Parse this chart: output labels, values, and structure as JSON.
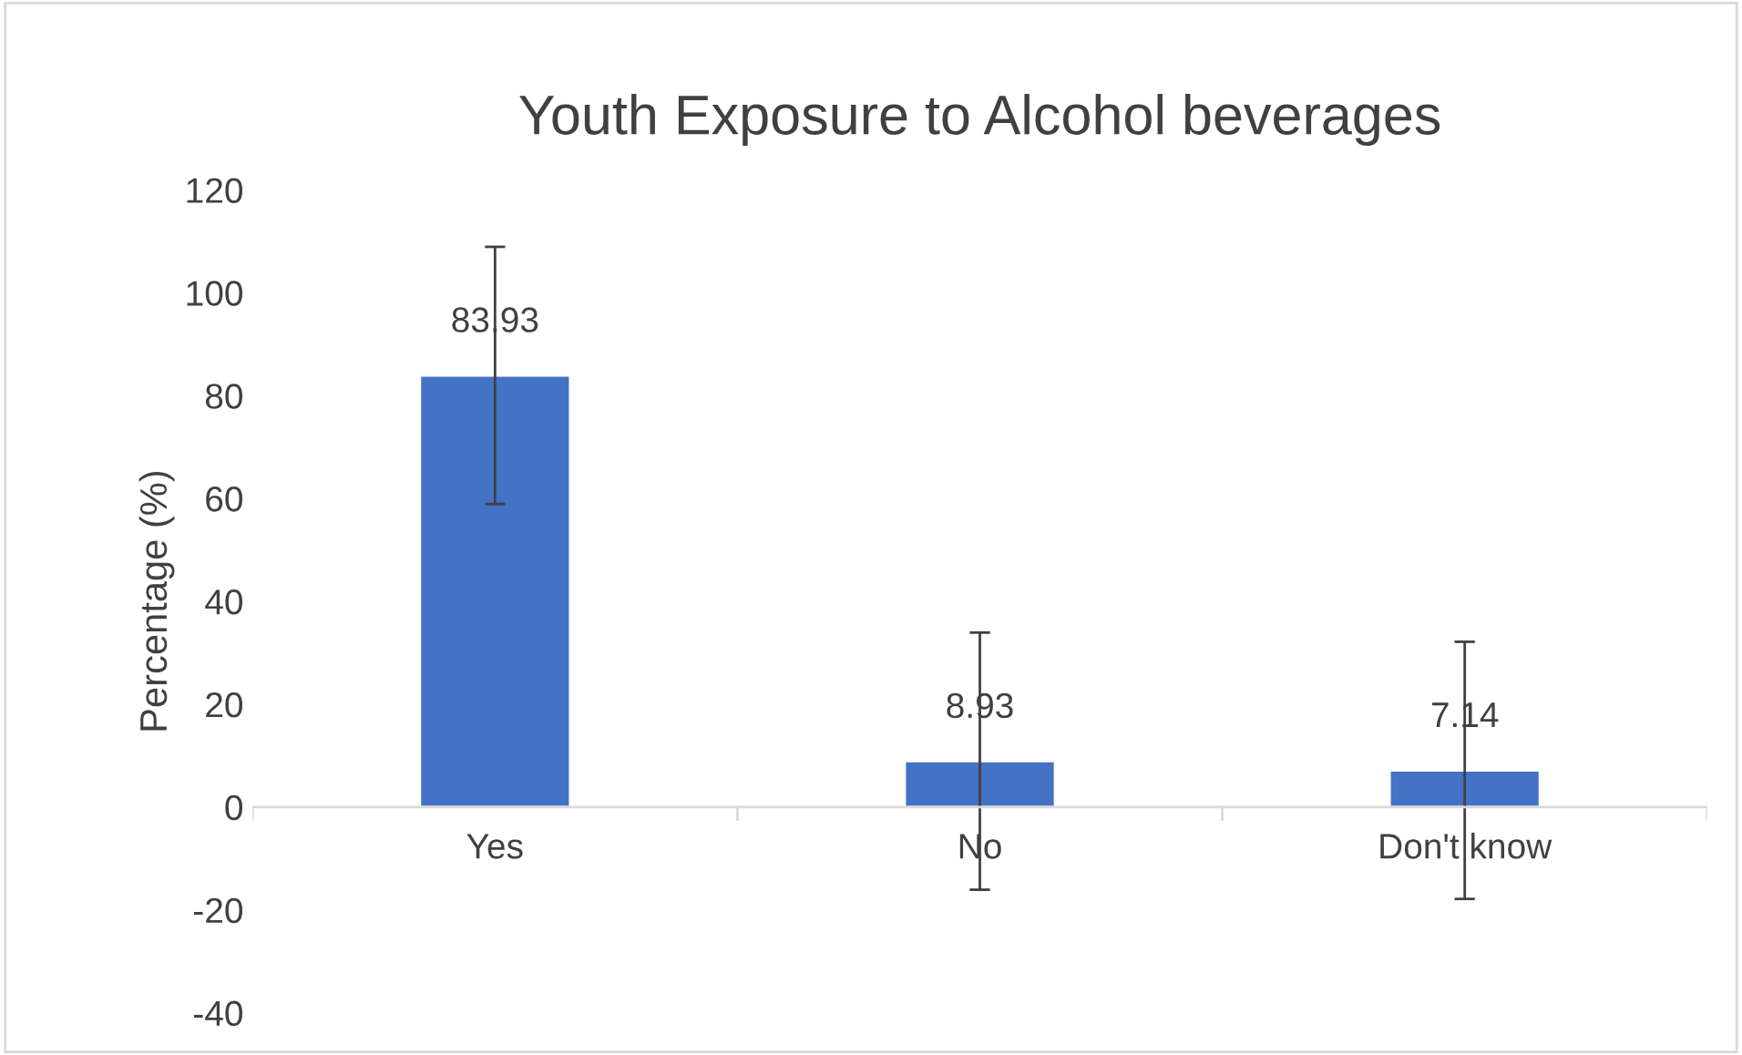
{
  "chart_data": {
    "type": "bar",
    "title": "Youth Exposure to Alcohol beverages",
    "ylabel": "Percentage (%)",
    "categories": [
      "Yes",
      "No",
      "Don't know"
    ],
    "values": [
      83.93,
      8.93,
      7.14
    ],
    "errors": [
      25,
      25,
      25
    ],
    "color": "#4472c4",
    "ylim": [
      -40,
      120
    ],
    "yticks": [
      -40,
      -20,
      0,
      20,
      40,
      60,
      80,
      100,
      120
    ],
    "data_labels": true,
    "grid": false,
    "legend": false
  }
}
